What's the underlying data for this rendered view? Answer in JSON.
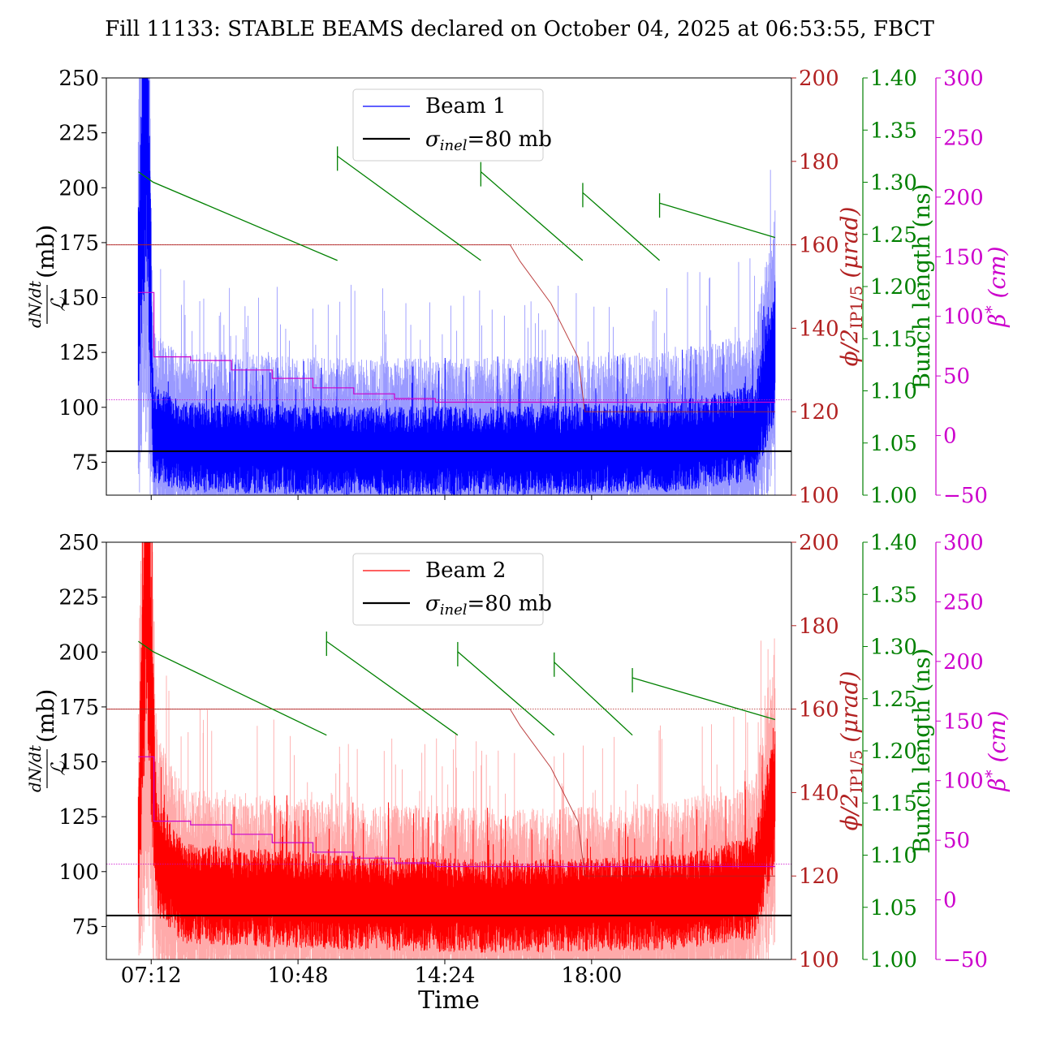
{
  "title": "Fill 11133: STABLE BEAMS declared on October 04, 2025 at 06:53:55, FBCT",
  "xlabel": "Time",
  "x_ticks": [
    "07:12",
    "10:48",
    "14:24",
    "18:00"
  ],
  "axis_labels": {
    "dndt_num": "dN/dt",
    "dndt_den": "ℒ",
    "dndt_unit": "(mb)",
    "phi_main": "ϕ/2",
    "phi_sub": "IP1/5",
    "phi_unit": "(μrad)",
    "bunch": "Bunch length (ns)",
    "beta_main": "β",
    "beta_sup": "*",
    "beta_unit": "(cm)"
  },
  "colors": {
    "beam1": "#0000ff",
    "beam1_light": "#9a9aff",
    "beam2": "#ff0000",
    "beam2_light": "#ffaaaa",
    "crossing_angle": "#b22222",
    "bunch_length": "#008000",
    "beta_star": "#cc00cc",
    "sigma_line": "#000000"
  },
  "chart_data": [
    {
      "type": "line",
      "panel": "top",
      "legend": [
        {
          "label": "Beam 1",
          "color": "#0000ff"
        },
        {
          "label_main": "σ",
          "label_sub": "inel",
          "label_tail": "=80 mb",
          "color": "#000000"
        }
      ],
      "legend_placement": "top-center",
      "xlim": [
        "06:06",
        "22:54"
      ],
      "x_ticks": [
        "07:12",
        "10:48",
        "14:24",
        "18:00"
      ],
      "left_axis": {
        "label": "dN/dt / ℒ (mb)",
        "ylim": [
          60,
          250
        ],
        "ticks": [
          "250",
          "225",
          "200",
          "175",
          "150",
          "125",
          "100",
          "75"
        ]
      },
      "right_axes": [
        {
          "label": "ϕ/2 IP1/5 (μrad)",
          "ylim": [
            100,
            200
          ],
          "ticks": [
            "200",
            "180",
            "160",
            "140",
            "120",
            "100"
          ]
        },
        {
          "label": "Bunch length (ns)",
          "ylim": [
            1.0,
            1.4
          ],
          "ticks": [
            "1.40",
            "1.35",
            "1.30",
            "1.25",
            "1.20",
            "1.15",
            "1.10",
            "1.05",
            "1.00"
          ]
        },
        {
          "label": "β* (cm)",
          "ylim": [
            -50,
            300
          ],
          "ticks": [
            "300",
            "250",
            "200",
            "150",
            "100",
            "50",
            "0",
            "−50"
          ]
        }
      ],
      "series": [
        {
          "name": "Beam 1",
          "axis": "left",
          "color": "#0000ff",
          "approx_level_mb": 82,
          "x": [
            "06:53",
            "07:05",
            "07:15",
            "08:00",
            "12:00",
            "16:00",
            "20:00",
            "22:00",
            "22:30"
          ],
          "y": [
            150,
            250,
            90,
            84,
            82,
            82,
            84,
            90,
            130
          ]
        },
        {
          "name": "σinel=80 mb",
          "axis": "left",
          "color": "#000000",
          "x": [
            "06:06",
            "22:54"
          ],
          "y": [
            80,
            80
          ]
        },
        {
          "name": "crossing angle",
          "axis": "phi",
          "color": "#b22222",
          "x": [
            "06:06",
            "16:00",
            "16:15",
            "17:00",
            "17:40",
            "17:50",
            "22:30"
          ],
          "y": [
            160,
            160,
            156,
            146,
            133,
            120,
            120
          ]
        },
        {
          "name": "bunch length",
          "axis": "bunch",
          "color": "#008000",
          "segments": [
            {
              "x": [
                "06:53",
                "07:15",
                "11:46"
              ],
              "y": [
                1.31,
                1.3,
                1.225
              ]
            },
            {
              "x": [
                "11:46",
                "15:17"
              ],
              "y": [
                1.325,
                1.225
              ]
            },
            {
              "x": [
                "15:17",
                "17:47"
              ],
              "y": [
                1.31,
                1.225
              ]
            },
            {
              "x": [
                "17:47",
                "19:40"
              ],
              "y": [
                1.29,
                1.225
              ]
            },
            {
              "x": [
                "19:40",
                "22:30"
              ],
              "y": [
                1.28,
                1.247
              ]
            }
          ]
        },
        {
          "name": "beta star",
          "axis": "beta",
          "color": "#cc00cc",
          "x": [
            "06:53",
            "07:15",
            "07:16",
            "08:10",
            "09:10",
            "10:10",
            "11:10",
            "12:10",
            "13:10",
            "14:10",
            "22:30"
          ],
          "y": [
            120,
            120,
            66,
            63,
            55,
            48,
            40,
            35,
            31,
            28,
            28
          ],
          "ref_line_y": 30
        }
      ]
    },
    {
      "type": "line",
      "panel": "bottom",
      "legend": [
        {
          "label": "Beam 2",
          "color": "#ff0000"
        },
        {
          "label_main": "σ",
          "label_sub": "inel",
          "label_tail": "=80 mb",
          "color": "#000000"
        }
      ],
      "legend_placement": "top-center",
      "xlim": [
        "06:06",
        "22:54"
      ],
      "x_ticks": [
        "07:12",
        "10:48",
        "14:24",
        "18:00"
      ],
      "left_axis": {
        "label": "dN/dt / ℒ (mb)",
        "ylim": [
          60,
          250
        ],
        "ticks": [
          "250",
          "225",
          "200",
          "175",
          "150",
          "125",
          "100",
          "75"
        ]
      },
      "right_axes": [
        {
          "label": "ϕ/2 IP1/5 (μrad)",
          "ylim": [
            100,
            200
          ],
          "ticks": [
            "200",
            "180",
            "160",
            "140",
            "120",
            "100"
          ]
        },
        {
          "label": "Bunch length (ns)",
          "ylim": [
            1.0,
            1.4
          ],
          "ticks": [
            "1.40",
            "1.35",
            "1.30",
            "1.25",
            "1.20",
            "1.15",
            "1.10",
            "1.05",
            "1.00"
          ]
        },
        {
          "label": "β* (cm)",
          "ylim": [
            -50,
            300
          ],
          "ticks": [
            "300",
            "250",
            "200",
            "150",
            "100",
            "50",
            "0",
            "−50"
          ]
        }
      ],
      "series": [
        {
          "name": "Beam 2",
          "axis": "left",
          "color": "#ff0000",
          "approx_level_mb": 88,
          "x": [
            "06:53",
            "07:05",
            "07:20",
            "08:00",
            "12:00",
            "16:00",
            "20:00",
            "22:00",
            "22:30"
          ],
          "y": [
            110,
            250,
            110,
            92,
            88,
            86,
            88,
            95,
            140
          ]
        },
        {
          "name": "σinel=80 mb",
          "axis": "left",
          "color": "#000000",
          "x": [
            "06:06",
            "22:54"
          ],
          "y": [
            80,
            80
          ]
        },
        {
          "name": "crossing angle",
          "axis": "phi",
          "color": "#b22222",
          "x": [
            "06:06",
            "16:00",
            "16:15",
            "17:00",
            "17:40",
            "17:50",
            "22:30"
          ],
          "y": [
            160,
            160,
            156,
            146,
            133,
            120,
            120
          ]
        },
        {
          "name": "bunch length",
          "axis": "bunch",
          "color": "#008000",
          "segments": [
            {
              "x": [
                "06:53",
                "07:15",
                "11:30"
              ],
              "y": [
                1.305,
                1.295,
                1.215
              ]
            },
            {
              "x": [
                "11:30",
                "14:43"
              ],
              "y": [
                1.305,
                1.215
              ]
            },
            {
              "x": [
                "14:43",
                "17:05"
              ],
              "y": [
                1.295,
                1.215
              ]
            },
            {
              "x": [
                "17:05",
                "19:00"
              ],
              "y": [
                1.285,
                1.215
              ]
            },
            {
              "x": [
                "19:00",
                "22:30"
              ],
              "y": [
                1.27,
                1.23
              ]
            }
          ]
        },
        {
          "name": "beta star",
          "axis": "beta",
          "color": "#cc00cc",
          "x": [
            "06:53",
            "07:15",
            "07:16",
            "08:10",
            "09:10",
            "10:10",
            "11:10",
            "12:10",
            "13:10",
            "14:10",
            "22:30"
          ],
          "y": [
            120,
            120,
            66,
            63,
            55,
            48,
            40,
            35,
            31,
            28,
            28
          ],
          "ref_line_y": 30
        }
      ]
    }
  ]
}
